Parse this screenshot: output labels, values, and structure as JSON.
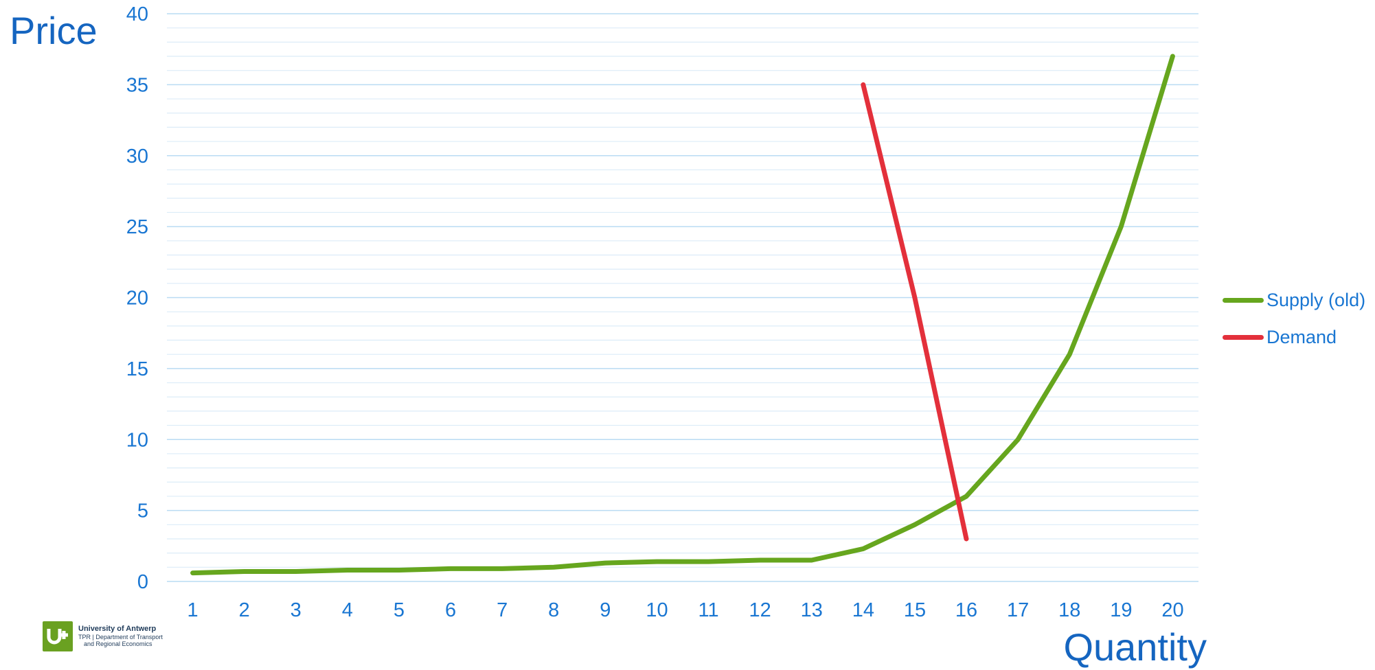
{
  "chart_data": {
    "type": "line",
    "title": "Price",
    "xlabel": "Quantity",
    "ylabel": "Price",
    "categories": [
      "1",
      "2",
      "3",
      "4",
      "5",
      "6",
      "7",
      "8",
      "9",
      "10",
      "11",
      "12",
      "13",
      "14",
      "15",
      "16",
      "17",
      "18",
      "19",
      "20"
    ],
    "y_ticks": [
      "0",
      "5",
      "10",
      "15",
      "20",
      "25",
      "30",
      "35",
      "40"
    ],
    "ylim": [
      0,
      40
    ],
    "grid": "horizontal, major every 5 and minor every 1",
    "legend_position": "right",
    "series": [
      {
        "name": "Supply (old)",
        "color": "#66a61e",
        "x": [
          1,
          2,
          3,
          4,
          5,
          6,
          7,
          8,
          9,
          10,
          11,
          12,
          13,
          14,
          15,
          16,
          17,
          18,
          19,
          20
        ],
        "values": [
          0.6,
          0.7,
          0.7,
          0.8,
          0.8,
          0.9,
          0.9,
          1.0,
          1.3,
          1.4,
          1.4,
          1.5,
          1.5,
          2.3,
          4.0,
          6.0,
          10.0,
          16.0,
          25.0,
          37.0
        ]
      },
      {
        "name": "Demand",
        "color": "#e3303b",
        "x": [
          14,
          15,
          16
        ],
        "values": [
          35.0,
          20.0,
          3.0
        ]
      }
    ]
  },
  "logo": {
    "university": "University of Antwerp",
    "department_line1": "TPR | Department of Transport",
    "department_line2": "and Regional Economics"
  },
  "colors": {
    "text_accent": "#1976d2",
    "grid_major": "#b9dbf3",
    "grid_minor": "#dcecf8",
    "logo_green": "#6aa121"
  }
}
